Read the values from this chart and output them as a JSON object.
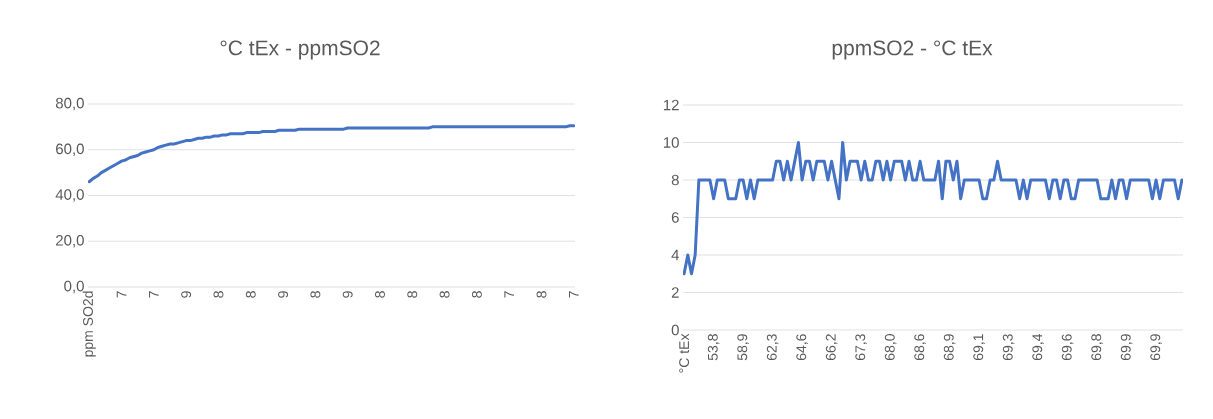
{
  "chart_data": [
    {
      "type": "line",
      "title": "°C tEx - ppmSO2",
      "color": "#4472c4",
      "marker": "none",
      "grid": "y",
      "categories": [
        "ppm SO2d",
        null,
        null,
        null,
        null,
        null,
        null,
        null,
        "7",
        null,
        null,
        null,
        null,
        null,
        null,
        null,
        "7",
        null,
        null,
        null,
        null,
        null,
        null,
        null,
        "9",
        null,
        null,
        null,
        null,
        null,
        null,
        null,
        "8",
        null,
        null,
        null,
        null,
        null,
        null,
        null,
        "8",
        null,
        null,
        null,
        null,
        null,
        null,
        null,
        "9",
        null,
        null,
        null,
        null,
        null,
        null,
        null,
        "8",
        null,
        null,
        null,
        null,
        null,
        null,
        null,
        "9",
        null,
        null,
        null,
        null,
        null,
        null,
        null,
        "8",
        null,
        null,
        null,
        null,
        null,
        null,
        null,
        "8",
        null,
        null,
        null,
        null,
        null,
        null,
        null,
        "8",
        null,
        null,
        null,
        null,
        null,
        null,
        null,
        "8",
        null,
        null,
        null,
        null,
        null,
        null,
        null,
        "7",
        null,
        null,
        null,
        null,
        null,
        null,
        null,
        "8",
        null,
        null,
        null,
        null,
        null,
        null,
        null,
        "7"
      ],
      "values": [
        46,
        47.5,
        48.5,
        50,
        51,
        52,
        53,
        54,
        55,
        55.5,
        56.5,
        57,
        57.5,
        58.5,
        59,
        59.5,
        60,
        61,
        61.5,
        62,
        62.5,
        62.5,
        63,
        63.5,
        64,
        64,
        64.5,
        65,
        65,
        65.5,
        65.5,
        66,
        66,
        66.5,
        66.5,
        67,
        67,
        67,
        67,
        67.5,
        67.5,
        67.5,
        67.5,
        68,
        68,
        68,
        68,
        68.5,
        68.5,
        68.5,
        68.5,
        68.5,
        69,
        69,
        69,
        69,
        69,
        69,
        69,
        69,
        69,
        69,
        69,
        69,
        69.5,
        69.5,
        69.5,
        69.5,
        69.5,
        69.5,
        69.5,
        69.5,
        69.5,
        69.5,
        69.5,
        69.5,
        69.5,
        69.5,
        69.5,
        69.5,
        69.5,
        69.5,
        69.5,
        69.5,
        69.5,
        70,
        70,
        70,
        70,
        70,
        70,
        70,
        70,
        70,
        70,
        70,
        70,
        70,
        70,
        70,
        70,
        70,
        70,
        70,
        70,
        70,
        70,
        70,
        70,
        70,
        70,
        70,
        70,
        70,
        70,
        70,
        70,
        70,
        70,
        70.5,
        70.5
      ],
      "ylim": [
        0,
        80
      ],
      "yticks": [
        {
          "value": 0,
          "label": "0,0"
        },
        {
          "value": 20,
          "label": "20,0"
        },
        {
          "value": 40,
          "label": "40,0"
        },
        {
          "value": 60,
          "label": "60,0"
        },
        {
          "value": 80,
          "label": "80,0"
        }
      ]
    },
    {
      "type": "line",
      "title": "ppmSO2 - °C tEx",
      "color": "#4472c4",
      "marker": "none",
      "grid": "y",
      "categories": [
        "°C tEx",
        null,
        null,
        null,
        null,
        null,
        null,
        null,
        "53,8",
        null,
        null,
        null,
        null,
        null,
        null,
        null,
        "58,9",
        null,
        null,
        null,
        null,
        null,
        null,
        null,
        "62,3",
        null,
        null,
        null,
        null,
        null,
        null,
        null,
        "64,6",
        null,
        null,
        null,
        null,
        null,
        null,
        null,
        "66,2",
        null,
        null,
        null,
        null,
        null,
        null,
        null,
        "67,3",
        null,
        null,
        null,
        null,
        null,
        null,
        null,
        "68,0",
        null,
        null,
        null,
        null,
        null,
        null,
        null,
        "68,6",
        null,
        null,
        null,
        null,
        null,
        null,
        null,
        "68,9",
        null,
        null,
        null,
        null,
        null,
        null,
        null,
        "69,1",
        null,
        null,
        null,
        null,
        null,
        null,
        null,
        "69,3",
        null,
        null,
        null,
        null,
        null,
        null,
        null,
        "69,4",
        null,
        null,
        null,
        null,
        null,
        null,
        null,
        "69,6",
        null,
        null,
        null,
        null,
        null,
        null,
        null,
        "69,8",
        null,
        null,
        null,
        null,
        null,
        null,
        null,
        "69,9",
        null,
        null,
        null,
        null,
        null,
        null,
        null,
        "69,9",
        null,
        null,
        null,
        null,
        null,
        null,
        null
      ],
      "values": [
        3,
        4,
        3,
        4,
        8,
        8,
        8,
        8,
        7,
        8,
        8,
        8,
        7,
        7,
        7,
        8,
        8,
        7,
        8,
        7,
        8,
        8,
        8,
        8,
        8,
        9,
        9,
        8,
        9,
        8,
        9,
        10,
        8,
        9,
        9,
        8,
        9,
        9,
        9,
        8,
        9,
        8,
        7,
        10,
        8,
        9,
        9,
        9,
        8,
        9,
        8,
        8,
        9,
        9,
        8,
        9,
        8,
        9,
        9,
        9,
        8,
        9,
        8,
        8,
        9,
        8,
        8,
        8,
        8,
        9,
        7,
        9,
        9,
        8,
        9,
        7,
        8,
        8,
        8,
        8,
        8,
        7,
        7,
        8,
        8,
        9,
        8,
        8,
        8,
        8,
        8,
        7,
        8,
        7,
        8,
        8,
        8,
        8,
        8,
        7,
        8,
        8,
        7,
        8,
        8,
        7,
        7,
        8,
        8,
        8,
        8,
        8,
        8,
        7,
        7,
        7,
        8,
        7,
        8,
        8,
        7,
        8,
        8,
        8,
        8,
        8,
        8,
        7,
        8,
        7,
        8,
        8,
        8,
        8,
        7,
        8
      ],
      "ylim": [
        0,
        12
      ],
      "yticks": [
        0,
        2,
        4,
        6,
        8,
        10,
        12
      ]
    }
  ]
}
